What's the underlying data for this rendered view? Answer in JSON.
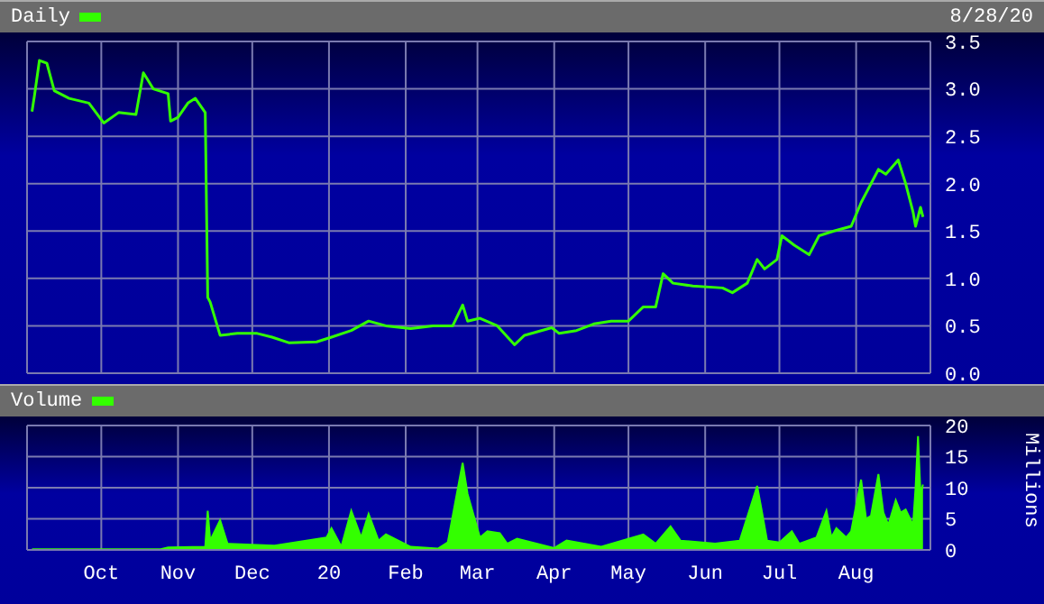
{
  "chart_data": [
    {
      "type": "line",
      "annotations": [
        "8/28/20"
      ],
      "legend": "top left",
      "grid": true,
      "tick_labels": "y",
      "xlim": [
        "2019-09-01",
        "2020-08-31"
      ],
      "xticks": [
        {
          "value": "2019-10-01",
          "label": null
        },
        {
          "value": "2019-11-01",
          "label": null
        },
        {
          "value": "2019-12-01",
          "label": null
        },
        {
          "value": "2020-01-01",
          "label": null
        },
        {
          "value": "2020-02-01",
          "label": null
        },
        {
          "value": "2020-03-01",
          "label": null
        },
        {
          "value": "2020-04-01",
          "label": null
        },
        {
          "value": "2020-05-01",
          "label": null
        },
        {
          "value": "2020-06-01",
          "label": null
        },
        {
          "value": "2020-07-01",
          "label": null
        },
        {
          "value": "2020-08-01",
          "label": null
        }
      ],
      "ylim": [
        0,
        3.5
      ],
      "yticks": [
        {
          "value": 0,
          "label": "0.0"
        },
        {
          "value": 0.5,
          "label": "0.5"
        },
        {
          "value": 1,
          "label": "1.0"
        },
        {
          "value": 1.5,
          "label": "1.5"
        },
        {
          "value": 2,
          "label": "2.0"
        },
        {
          "value": 2.5,
          "label": "2.5"
        },
        {
          "value": 3,
          "label": "3.0"
        },
        {
          "value": 3.5,
          "label": "3.5"
        }
      ],
      "x": [
        "2019-09-03",
        "2019-09-04",
        "2019-09-06",
        "2019-09-09",
        "2019-09-12",
        "2019-09-18",
        "2019-09-26",
        "2019-10-02",
        "2019-10-08",
        "2019-10-15",
        "2019-10-18",
        "2019-10-22",
        "2019-10-28",
        "2019-10-29",
        "2019-11-01",
        "2019-11-05",
        "2019-11-08",
        "2019-11-12",
        "2019-11-13",
        "2019-11-14",
        "2019-11-18",
        "2019-11-25",
        "2019-12-03",
        "2019-12-09",
        "2019-12-16",
        "2019-12-27",
        "2020-01-02",
        "2020-01-10",
        "2020-01-17",
        "2020-01-24",
        "2020-02-03",
        "2020-02-12",
        "2020-02-20",
        "2020-02-24",
        "2020-02-26",
        "2020-03-02",
        "2020-03-09",
        "2020-03-16",
        "2020-03-20",
        "2020-03-31",
        "2020-04-03",
        "2020-04-10",
        "2020-04-17",
        "2020-04-24",
        "2020-05-01",
        "2020-05-07",
        "2020-05-12",
        "2020-05-15",
        "2020-05-19",
        "2020-05-27",
        "2020-06-08",
        "2020-06-12",
        "2020-06-18",
        "2020-06-22",
        "2020-06-25",
        "2020-06-30",
        "2020-07-02",
        "2020-07-07",
        "2020-07-13",
        "2020-07-17",
        "2020-07-23",
        "2020-07-30",
        "2020-08-03",
        "2020-08-06",
        "2020-08-10",
        "2020-08-13",
        "2020-08-18",
        "2020-08-21",
        "2020-08-24",
        "2020-08-25",
        "2020-08-27",
        "2020-08-28"
      ],
      "series": [
        {
          "name": "Daily",
          "color": "#33ff00",
          "values": [
            2.76,
            2.93,
            3.3,
            3.27,
            2.98,
            2.9,
            2.85,
            2.64,
            2.75,
            2.73,
            3.17,
            3.0,
            2.95,
            2.66,
            2.7,
            2.85,
            2.9,
            2.75,
            0.8,
            0.75,
            0.4,
            0.42,
            0.42,
            0.38,
            0.32,
            0.33,
            0.38,
            0.45,
            0.55,
            0.5,
            0.47,
            0.5,
            0.5,
            0.72,
            0.55,
            0.58,
            0.5,
            0.3,
            0.4,
            0.48,
            0.42,
            0.45,
            0.52,
            0.55,
            0.55,
            0.7,
            0.7,
            1.05,
            0.95,
            0.92,
            0.9,
            0.85,
            0.95,
            1.2,
            1.1,
            1.2,
            1.45,
            1.35,
            1.25,
            1.45,
            1.5,
            1.55,
            1.8,
            1.95,
            2.15,
            2.1,
            2.25,
            2.0,
            1.7,
            1.55,
            1.75,
            1.65
          ]
        }
      ]
    },
    {
      "type": "area",
      "ylabel": "Millions",
      "legend": "top left",
      "grid": true,
      "xlim": [
        "2019-09-01",
        "2020-08-31"
      ],
      "xticks": [
        {
          "value": "2019-10-01",
          "label": "Oct"
        },
        {
          "value": "2019-11-01",
          "label": "Nov"
        },
        {
          "value": "2019-12-01",
          "label": "Dec"
        },
        {
          "value": "2020-01-01",
          "label": "20"
        },
        {
          "value": "2020-02-01",
          "label": "Feb"
        },
        {
          "value": "2020-03-01",
          "label": "Mar"
        },
        {
          "value": "2020-04-01",
          "label": "Apr"
        },
        {
          "value": "2020-05-01",
          "label": "May"
        },
        {
          "value": "2020-06-01",
          "label": "Jun"
        },
        {
          "value": "2020-07-01",
          "label": "Jul"
        },
        {
          "value": "2020-08-01",
          "label": "Aug"
        }
      ],
      "ylim": [
        0,
        20
      ],
      "yticks": [
        0,
        5,
        10,
        15,
        20
      ],
      "x": [
        "2019-09-03",
        "2019-10-25",
        "2019-10-28",
        "2019-11-12",
        "2019-11-13",
        "2019-11-14",
        "2019-11-18",
        "2019-11-21",
        "2019-12-10",
        "2019-12-31",
        "2020-01-02",
        "2020-01-06",
        "2020-01-10",
        "2020-01-14",
        "2020-01-17",
        "2020-01-21",
        "2020-01-24",
        "2020-02-03",
        "2020-02-14",
        "2020-02-18",
        "2020-02-24",
        "2020-02-26",
        "2020-03-02",
        "2020-03-05",
        "2020-03-10",
        "2020-03-13",
        "2020-03-17",
        "2020-04-01",
        "2020-04-06",
        "2020-04-20",
        "2020-05-07",
        "2020-05-12",
        "2020-05-18",
        "2020-05-22",
        "2020-06-05",
        "2020-06-15",
        "2020-06-22",
        "2020-06-24",
        "2020-06-26",
        "2020-07-01",
        "2020-07-06",
        "2020-07-09",
        "2020-07-16",
        "2020-07-20",
        "2020-07-22",
        "2020-07-24",
        "2020-07-28",
        "2020-07-30",
        "2020-08-03",
        "2020-08-05",
        "2020-08-07",
        "2020-08-10",
        "2020-08-12",
        "2020-08-14",
        "2020-08-17",
        "2020-08-19",
        "2020-08-21",
        "2020-08-24",
        "2020-08-25",
        "2020-08-26",
        "2020-08-27",
        "2020-08-28"
      ],
      "series": [
        {
          "name": "Volume",
          "color": "#33ff00",
          "values": [
            0.1,
            0.1,
            0.4,
            0.5,
            6.3,
            1.5,
            4.8,
            1,
            0.7,
            2,
            3.5,
            0.5,
            6.3,
            2,
            5.8,
            1.5,
            2.5,
            0.5,
            0.2,
            1.2,
            14,
            9,
            2,
            3,
            2.7,
            1,
            1.8,
            0.3,
            1.5,
            0.5,
            2.5,
            1,
            3.8,
            1.5,
            1,
            1.5,
            10.3,
            6,
            1.5,
            1.2,
            3,
            1,
            2,
            6.3,
            2,
            3.5,
            2,
            3,
            11.3,
            5,
            5.5,
            12.2,
            6,
            4,
            8,
            6,
            6.5,
            4,
            10,
            18.3,
            9,
            10.5
          ]
        }
      ]
    }
  ]
}
